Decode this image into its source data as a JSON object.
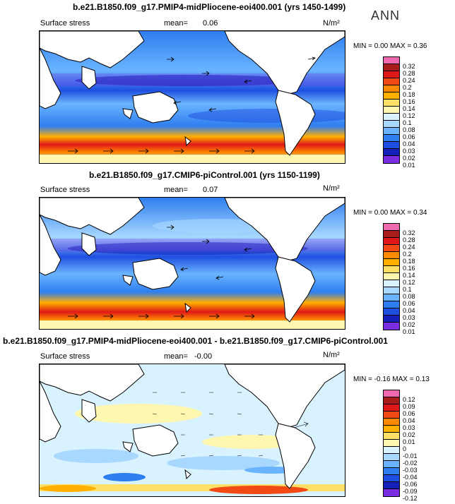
{
  "header": {
    "annual_label": "ANN",
    "units": "N/m²"
  },
  "panels": [
    {
      "title": "b.e21.B1850.f09_g17.PMIP4-midPliocene-eoi400.001 (yrs 1450-1499)",
      "variable": "Surface stress",
      "mean_label": "mean=",
      "mean_value": "0.06",
      "minmax": "MIN =     0.00  MAX =     0.36",
      "levels": [
        "0.32",
        "0.28",
        "0.24",
        "0.2",
        "0.18",
        "0.16",
        "0.14",
        "0.12",
        "0.1",
        "0.08",
        "0.06",
        "0.04",
        "0.03",
        "0.02",
        "0.01"
      ],
      "colors": [
        "#f06ab0",
        "#a81c1c",
        "#e01818",
        "#f24a14",
        "#ff8a00",
        "#ffb000",
        "#ffe066",
        "#fff6b0",
        "#d8f2ff",
        "#a8d8ff",
        "#6ab4ff",
        "#2f7ef0",
        "#1f4fe0",
        "#1420b8",
        "#7b2ee0"
      ]
    },
    {
      "title": "b.e21.B1850.f09_g17.CMIP6-piControl.001 (yrs 1150-1199)",
      "variable": "Surface stress",
      "mean_label": "mean=",
      "mean_value": "0.07",
      "minmax": "MIN =     0.00  MAX =     0.34",
      "levels": [
        "0.32",
        "0.28",
        "0.24",
        "0.2",
        "0.18",
        "0.16",
        "0.14",
        "0.12",
        "0.1",
        "0.08",
        "0.06",
        "0.04",
        "0.03",
        "0.02",
        "0.01"
      ],
      "colors": [
        "#f06ab0",
        "#a81c1c",
        "#e01818",
        "#f24a14",
        "#ff8a00",
        "#ffb000",
        "#ffe066",
        "#fff6b0",
        "#d8f2ff",
        "#a8d8ff",
        "#6ab4ff",
        "#2f7ef0",
        "#1f4fe0",
        "#1420b8",
        "#7b2ee0"
      ]
    },
    {
      "title": "b.e21.B1850.f09_g17.PMIP4-midPliocene-eoi400.001 - b.e21.B1850.f09_g17.CMIP6-piControl.001",
      "variable": "Surface stress",
      "mean_label": "mean=",
      "mean_value": "-0.00",
      "minmax": "MIN =   -0.16  MAX =     0.13",
      "levels": [
        "0.12",
        "0.09",
        "0.06",
        "0.04",
        "0.03",
        "0.02",
        "0.01",
        "0",
        "-0.01",
        "-0.02",
        "-0.03",
        "-0.04",
        "-0.06",
        "-0.09",
        "-0.12"
      ],
      "colors": [
        "#f06ab0",
        "#a81c1c",
        "#e01818",
        "#f24a14",
        "#ff8a00",
        "#ffb000",
        "#ffe066",
        "#fff6b0",
        "#d8f2ff",
        "#a8d8ff",
        "#6ab4ff",
        "#2f7ef0",
        "#1f4fe0",
        "#1420b8",
        "#7b2ee0"
      ]
    }
  ]
}
